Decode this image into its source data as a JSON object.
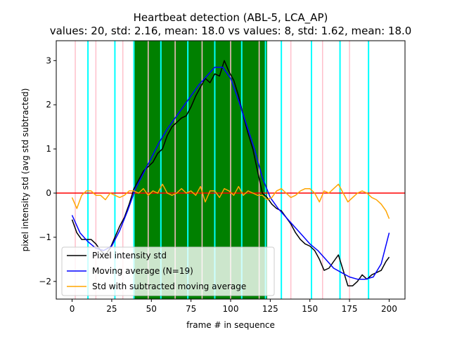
{
  "chart_data": {
    "type": "line",
    "title_line1": "Heartbeat detection (ABL-5, LCA_AP)",
    "title_line2": "values: 20, std: 2.16, mean: 18.0 vs values: 8, std: 1.62, mean: 18.0",
    "xlabel": "frame # in sequence",
    "ylabel": "pixel intensity std (avg std subtracted)",
    "xlim": [
      -10,
      210
    ],
    "ylim": [
      -2.4,
      3.45
    ],
    "xticks": [
      0,
      25,
      50,
      75,
      100,
      125,
      150,
      175,
      200
    ],
    "yticks": [
      -2,
      -1,
      0,
      1,
      2,
      3
    ],
    "green_span": [
      39,
      123
    ],
    "zero_line": 0,
    "pink_lines": [
      2,
      15,
      32,
      48,
      65,
      82,
      100,
      118,
      138,
      158,
      175
    ],
    "cyan_lines": [
      10,
      27,
      39,
      56,
      73,
      90,
      107,
      122,
      132,
      151,
      169,
      187
    ],
    "legend": {
      "position": "lower-left",
      "entries": [
        "Pixel intensity std",
        "Moving average (N=19)",
        "Std with subtracted moving average"
      ]
    },
    "colors": {
      "std": "#000000",
      "moving_average": "#0000ff",
      "residual": "#ffa500",
      "zero_line": "#ff0000",
      "span": "#008000",
      "pink": "#ffc0cb",
      "cyan": "#00ffff"
    },
    "series": [
      {
        "name": "Pixel intensity std",
        "x": [
          0,
          3,
          6,
          9,
          12,
          15,
          18,
          21,
          24,
          27,
          30,
          33,
          36,
          39,
          42,
          45,
          48,
          51,
          54,
          57,
          60,
          63,
          66,
          69,
          72,
          75,
          78,
          81,
          84,
          87,
          90,
          93,
          96,
          99,
          102,
          105,
          108,
          111,
          114,
          117,
          120,
          123,
          126,
          129,
          132,
          135,
          138,
          141,
          144,
          147,
          150,
          153,
          156,
          159,
          162,
          165,
          168,
          171,
          174,
          177,
          180,
          183,
          186,
          189,
          192,
          195,
          198,
          200
        ],
        "y": [
          -0.6,
          -0.9,
          -1.05,
          -1.05,
          -1.05,
          -1.15,
          -1.3,
          -1.4,
          -1.25,
          -1.0,
          -0.75,
          -0.55,
          -0.25,
          0.1,
          0.3,
          0.5,
          0.6,
          0.7,
          0.9,
          1.0,
          1.3,
          1.5,
          1.6,
          1.7,
          1.75,
          1.95,
          2.2,
          2.4,
          2.6,
          2.5,
          2.7,
          2.65,
          3.0,
          2.75,
          2.55,
          2.2,
          1.75,
          1.35,
          1.0,
          0.5,
          0.0,
          -0.1,
          -0.25,
          -0.35,
          -0.4,
          -0.55,
          -0.7,
          -0.9,
          -1.05,
          -1.15,
          -1.2,
          -1.3,
          -1.5,
          -1.75,
          -1.7,
          -1.55,
          -1.4,
          -1.75,
          -2.1,
          -2.1,
          -2.0,
          -1.85,
          -1.95,
          -1.85,
          -1.8,
          -1.75,
          -1.55,
          -1.45
        ]
      },
      {
        "name": "Moving average (N=19)",
        "x": [
          0,
          5,
          10,
          15,
          20,
          25,
          30,
          35,
          40,
          45,
          50,
          55,
          60,
          65,
          70,
          75,
          80,
          85,
          90,
          95,
          100,
          105,
          110,
          115,
          120,
          125,
          130,
          135,
          140,
          145,
          150,
          155,
          160,
          165,
          170,
          175,
          180,
          185,
          190,
          195,
          200
        ],
        "y": [
          -0.5,
          -0.9,
          -1.1,
          -1.25,
          -1.3,
          -1.2,
          -0.85,
          -0.4,
          0.1,
          0.45,
          0.8,
          1.15,
          1.45,
          1.7,
          1.95,
          2.2,
          2.45,
          2.65,
          2.85,
          2.85,
          2.6,
          2.1,
          1.55,
          1.0,
          0.35,
          -0.1,
          -0.35,
          -0.55,
          -0.75,
          -0.95,
          -1.15,
          -1.3,
          -1.5,
          -1.7,
          -1.8,
          -1.9,
          -1.95,
          -1.95,
          -1.9,
          -1.6,
          -0.9
        ]
      },
      {
        "name": "Std with subtracted moving average",
        "x": [
          0,
          3,
          6,
          9,
          12,
          15,
          18,
          21,
          24,
          27,
          30,
          33,
          36,
          39,
          42,
          45,
          48,
          51,
          54,
          57,
          60,
          63,
          66,
          69,
          72,
          75,
          78,
          81,
          84,
          87,
          90,
          93,
          96,
          99,
          102,
          105,
          108,
          111,
          114,
          117,
          120,
          123,
          126,
          129,
          132,
          135,
          138,
          141,
          144,
          147,
          150,
          153,
          156,
          159,
          162,
          165,
          168,
          171,
          174,
          177,
          180,
          183,
          186,
          189,
          192,
          195,
          198,
          200
        ],
        "y": [
          -0.1,
          -0.35,
          -0.05,
          0.05,
          0.05,
          -0.05,
          -0.05,
          -0.15,
          0.0,
          -0.05,
          -0.1,
          -0.05,
          0.05,
          0.05,
          0.0,
          0.1,
          -0.05,
          0.05,
          0.0,
          0.2,
          0.0,
          -0.05,
          0.0,
          0.1,
          0.0,
          0.05,
          -0.05,
          0.15,
          -0.2,
          0.05,
          0.05,
          -0.1,
          0.1,
          0.05,
          -0.05,
          0.15,
          -0.05,
          0.05,
          0.0,
          -0.05,
          -0.05,
          -0.15,
          -0.1,
          0.05,
          0.1,
          0.0,
          -0.1,
          -0.05,
          0.05,
          0.1,
          0.1,
          0.0,
          -0.2,
          0.05,
          0.0,
          0.1,
          0.2,
          0.0,
          -0.2,
          -0.1,
          0.0,
          0.05,
          0.0,
          -0.1,
          -0.15,
          -0.25,
          -0.4,
          -0.58
        ]
      }
    ]
  }
}
